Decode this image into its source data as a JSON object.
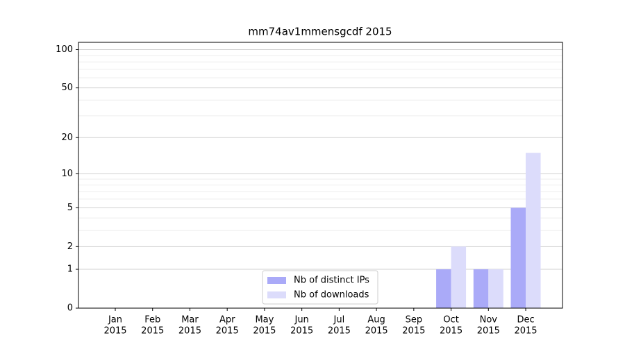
{
  "chart_data": {
    "type": "bar",
    "title": "mm74av1mmensgcdf 2015",
    "categories": [
      [
        "Jan",
        "2015"
      ],
      [
        "Feb",
        "2015"
      ],
      [
        "Mar",
        "2015"
      ],
      [
        "Apr",
        "2015"
      ],
      [
        "May",
        "2015"
      ],
      [
        "Jun",
        "2015"
      ],
      [
        "Jul",
        "2015"
      ],
      [
        "Aug",
        "2015"
      ],
      [
        "Sep",
        "2015"
      ],
      [
        "Oct",
        "2015"
      ],
      [
        "Nov",
        "2015"
      ],
      [
        "Dec",
        "2015"
      ]
    ],
    "series": [
      {
        "name": "Nb of distinct IPs",
        "color": "#aaaaf8",
        "values": [
          0,
          0,
          0,
          0,
          0,
          0,
          0,
          0,
          0,
          1,
          1,
          5
        ]
      },
      {
        "name": "Nb of downloads",
        "color": "#dcdcfb",
        "values": [
          0,
          0,
          0,
          0,
          0,
          0,
          0,
          0,
          0,
          2,
          1,
          15
        ]
      }
    ],
    "yscale": "symlog",
    "ylim": [
      0,
      114
    ],
    "yticks": [
      0,
      1,
      2,
      5,
      10,
      20,
      50,
      100
    ],
    "minor_yticks": [
      3,
      4,
      6,
      7,
      8,
      9,
      30,
      40,
      60,
      70,
      80,
      90
    ],
    "grid": true,
    "legend": "lower center"
  }
}
